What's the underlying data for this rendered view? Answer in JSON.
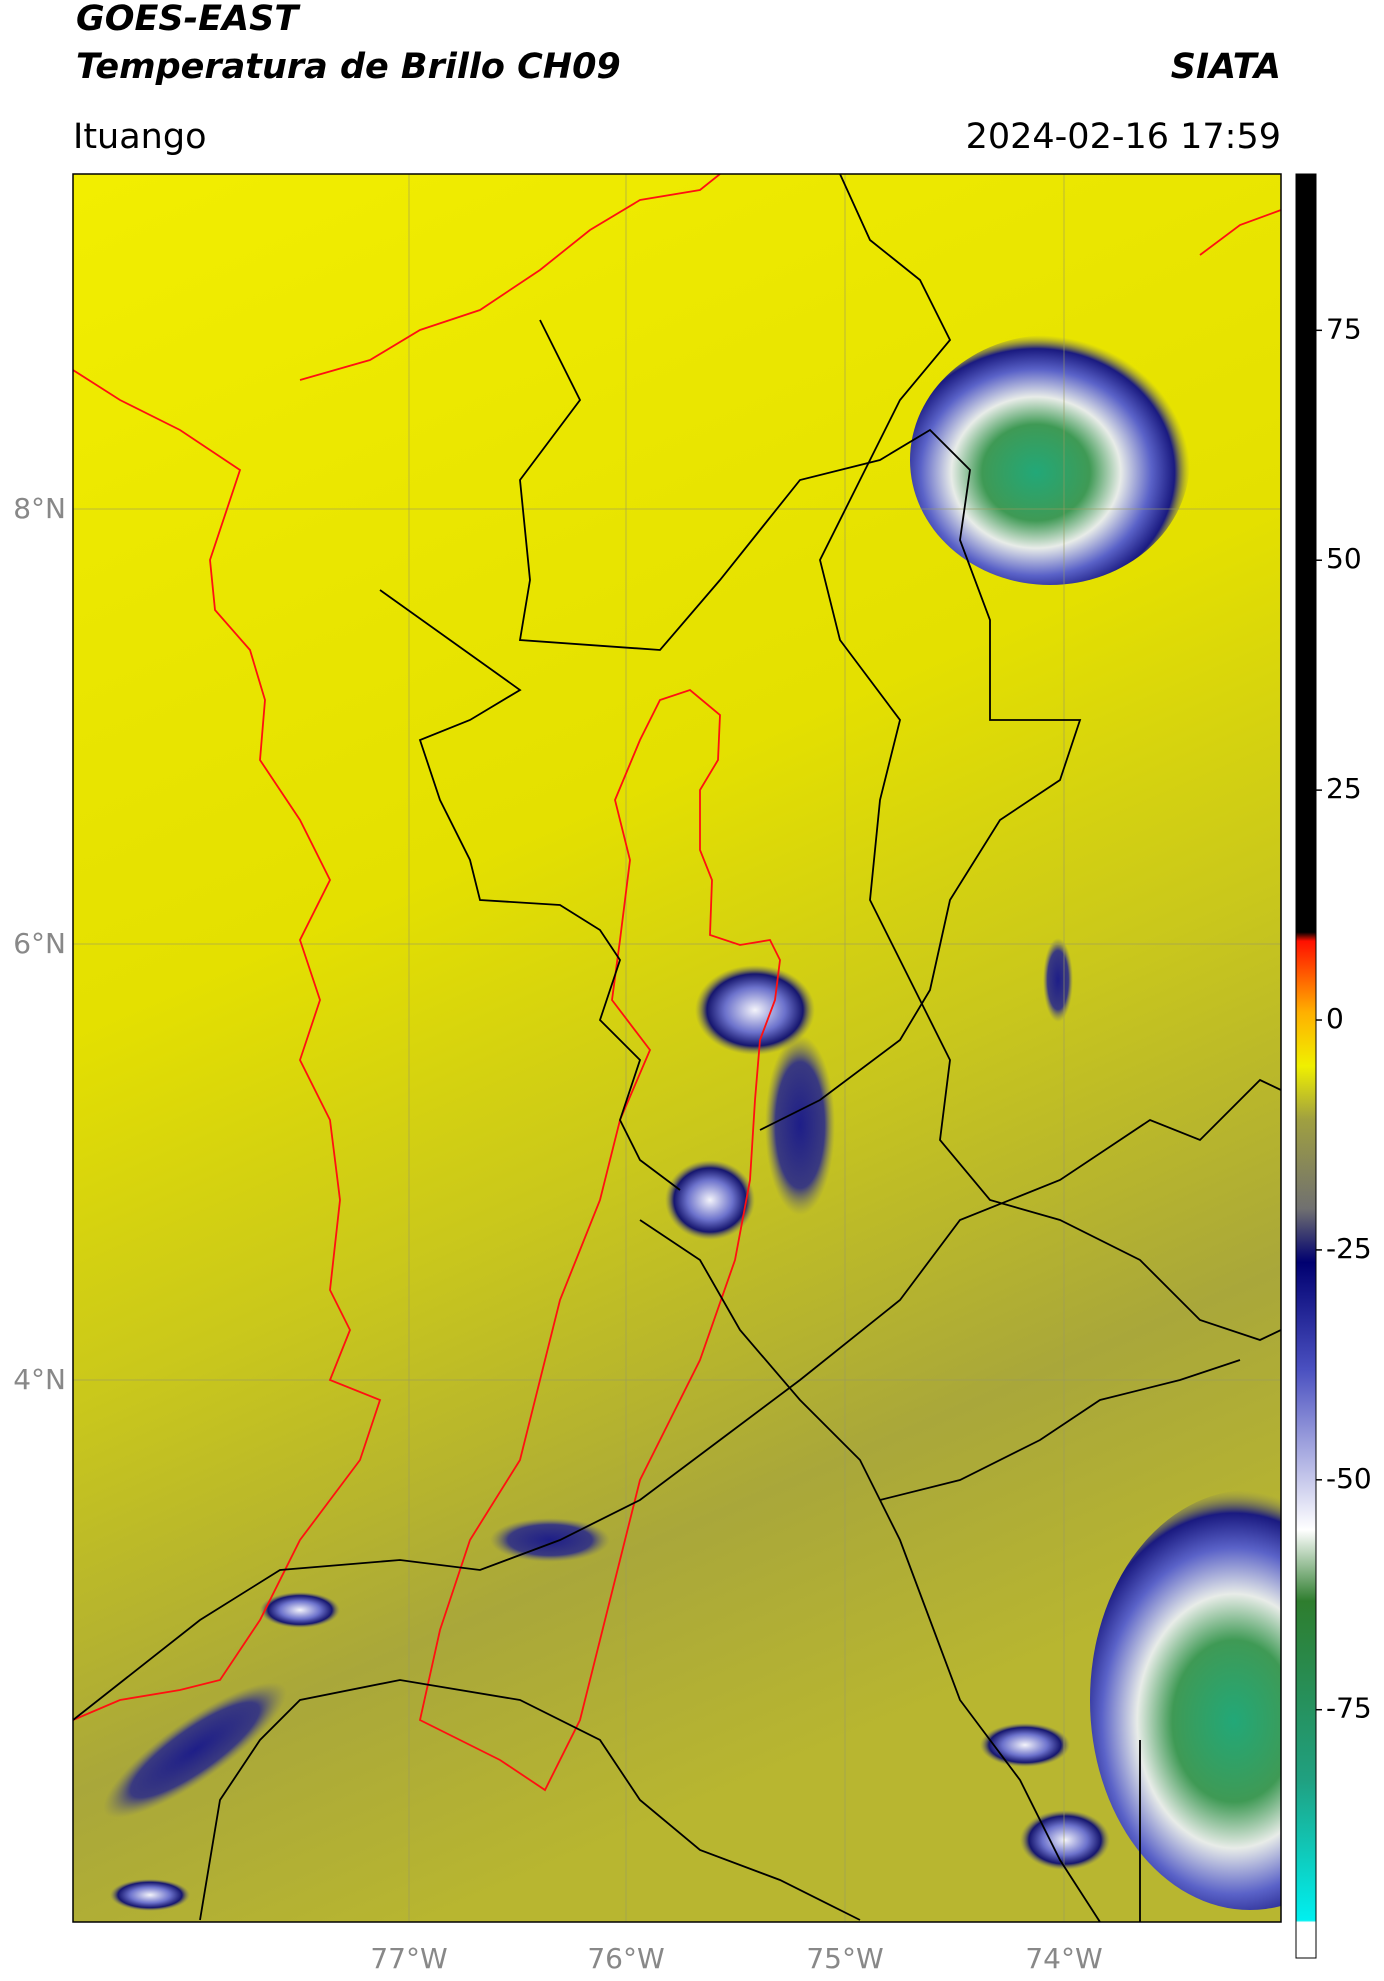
{
  "header": {
    "title": "GOES-EAST",
    "subtitle": "Temperatura de Brillo CH09",
    "source": "SIATA",
    "location": "Ituango",
    "datetime": "2024-02-16 17:59"
  },
  "map": {
    "lat_ticks": [
      "8°N",
      "6°N",
      "4°N"
    ],
    "lon_ticks": [
      "77°W",
      "76°W",
      "75°W",
      "74°W"
    ]
  },
  "colorbar": {
    "lim": [
      -102,
      92
    ],
    "ticks": [
      75,
      50,
      25,
      0,
      -25,
      -50,
      -75
    ]
  }
}
